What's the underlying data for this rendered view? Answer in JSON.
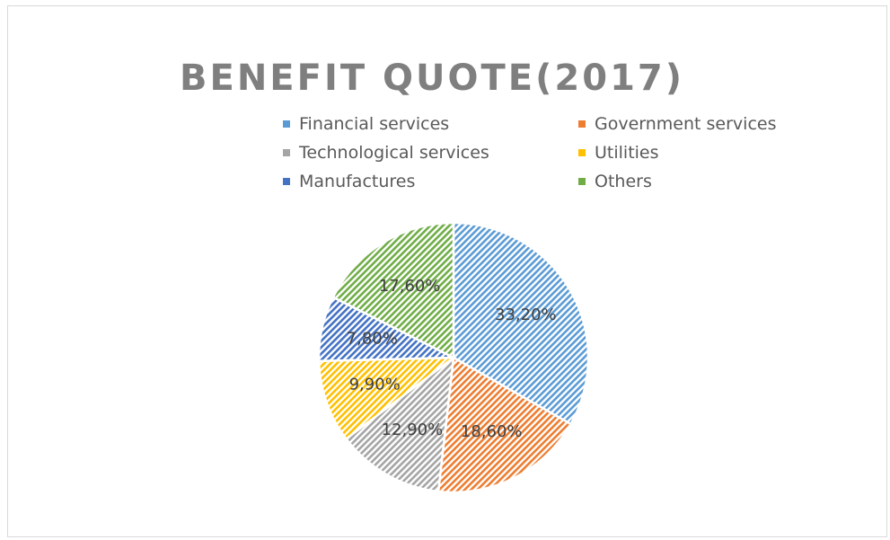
{
  "chart_data": {
    "type": "pie",
    "title": "BENEFIT QUOTE(2017)",
    "legend_position": "top",
    "slices": [
      {
        "label": "Financial services",
        "value": 33.2,
        "display": "33,20%",
        "color": "#5b9bd5"
      },
      {
        "label": "Government services",
        "value": 18.6,
        "display": "18,60%",
        "color": "#ed7d31"
      },
      {
        "label": "Technological services",
        "value": 12.9,
        "display": "12,90%",
        "color": "#a5a5a5"
      },
      {
        "label": "Utilities",
        "value": 9.9,
        "display": "9,90%",
        "color": "#ffc000"
      },
      {
        "label": "Manufactures",
        "value": 7.8,
        "display": "7,80%",
        "color": "#4472c4"
      },
      {
        "label": "Others",
        "value": 17.6,
        "display": "17,60%",
        "color": "#70ad47"
      }
    ]
  }
}
